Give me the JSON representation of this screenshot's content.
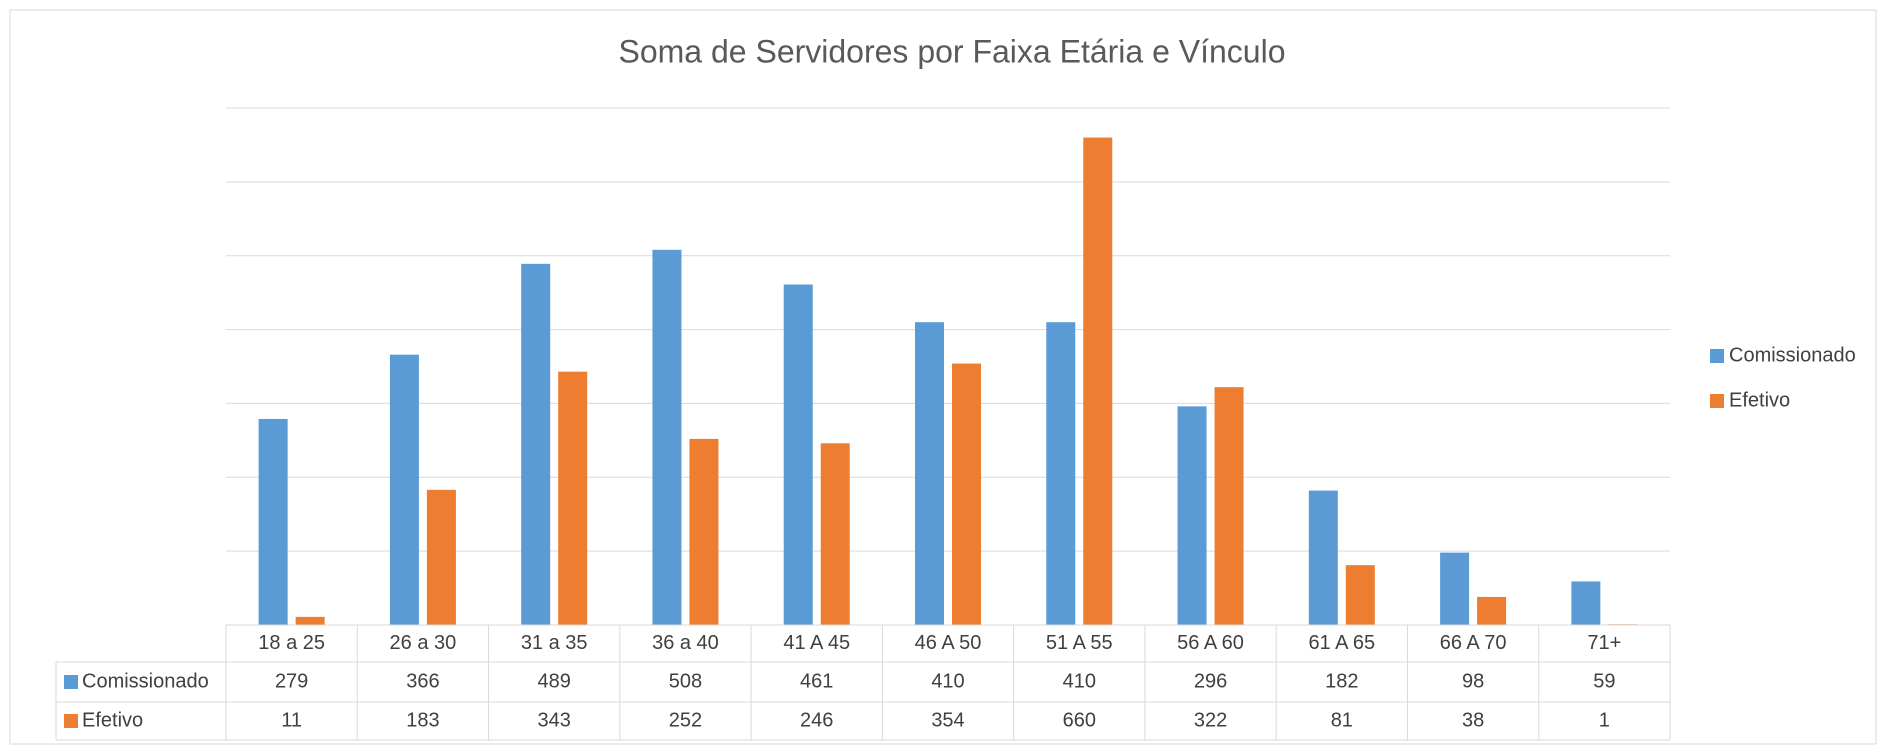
{
  "chart_data": {
    "type": "bar",
    "title": "Soma de Servidores por Faixa Etária e Vínculo",
    "categories": [
      "18 a 25",
      "26 a 30",
      "31 a 35",
      "36 a 40",
      "41 A 45",
      "46 A 50",
      "51 A 55",
      "56 A 60",
      "61 A 65",
      "66 A 70",
      "71+"
    ],
    "series": [
      {
        "name": "Comissionado",
        "color": "#5b9bd5",
        "values": [
          279,
          366,
          489,
          508,
          461,
          410,
          410,
          296,
          182,
          98,
          59
        ]
      },
      {
        "name": "Efetivo",
        "color": "#ed7d31",
        "values": [
          11,
          183,
          343,
          252,
          246,
          354,
          660,
          322,
          81,
          38,
          1
        ]
      }
    ],
    "ylim": [
      0,
      700
    ],
    "yticks": [
      0,
      100,
      200,
      300,
      400,
      500,
      600,
      700
    ],
    "grid": true,
    "legend": "right",
    "data_table": true
  }
}
